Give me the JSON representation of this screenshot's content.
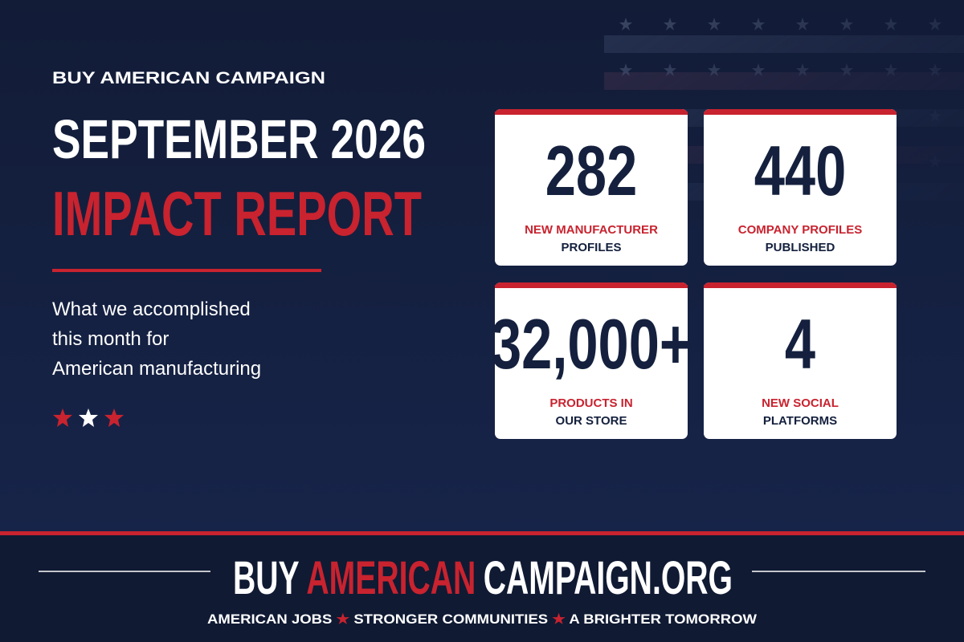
{
  "header": {
    "eyebrow": "BUY AMERICAN CAMPAIGN",
    "title": "SEPTEMBER 2026",
    "highlight": "IMPACT REPORT",
    "subtitle": [
      "What we accomplished",
      "this month for",
      "American manufacturing"
    ]
  },
  "stats": [
    {
      "value": "282",
      "label": [
        "NEW MANUFACTURER",
        "PROFILES"
      ]
    },
    {
      "value": "440",
      "label": [
        "COMPANY PROFILES",
        "PUBLISHED"
      ]
    },
    {
      "value": "32,000+",
      "label": [
        "PRODUCTS IN",
        "OUR STORE"
      ]
    },
    {
      "value": "4",
      "label": [
        "NEW SOCIAL",
        "PLATFORMS"
      ]
    }
  ],
  "footer": {
    "site": [
      "BUY",
      "AMERICAN",
      "CAMPAIGN.ORG"
    ],
    "tagline": [
      "AMERICAN JOBS",
      "STRONGER COMMUNITIES",
      "A BRIGHTER TOMORROW"
    ]
  }
}
